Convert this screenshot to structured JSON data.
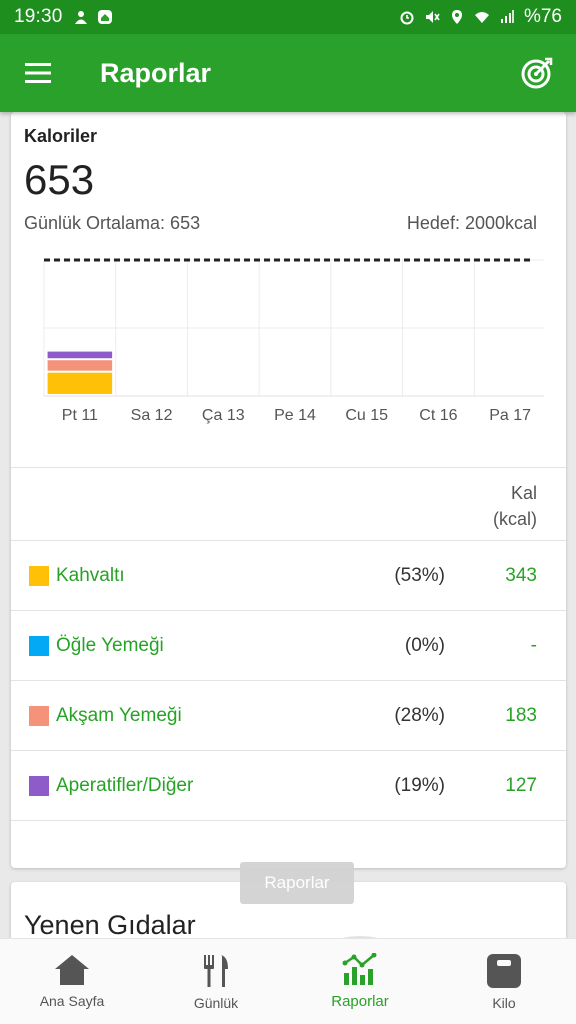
{
  "status_bar": {
    "time": "19:30",
    "battery": "%76"
  },
  "app_bar": {
    "title": "Raporlar"
  },
  "calories": {
    "label": "Kaloriler",
    "value": "653",
    "average_label": "Günlük Ortalama: 653",
    "goal_label": "Hedef: 2000kcal"
  },
  "chart_data": {
    "type": "bar",
    "stacked": true,
    "categories": [
      "Pt 11",
      "Sa 12",
      "Ça 13",
      "Pe 14",
      "Cu 15",
      "Ct 16",
      "Pa 17"
    ],
    "series": [
      {
        "name": "Kahvaltı",
        "color": "#FFC107",
        "values": [
          343,
          0,
          0,
          0,
          0,
          0,
          0
        ]
      },
      {
        "name": "Öğle Yemeği",
        "color": "#03A9F4",
        "values": [
          0,
          0,
          0,
          0,
          0,
          0,
          0
        ]
      },
      {
        "name": "Akşam Yemeği",
        "color": "#F4937A",
        "values": [
          183,
          0,
          0,
          0,
          0,
          0,
          0
        ]
      },
      {
        "name": "Aperatifler/Diğer",
        "color": "#8E5CC8",
        "values": [
          127,
          0,
          0,
          0,
          0,
          0,
          0
        ]
      }
    ],
    "goal_line": 2000,
    "ylim": [
      0,
      2000
    ],
    "grid": true
  },
  "table": {
    "header_line1": "Kal",
    "header_line2": "(kcal)",
    "rows": [
      {
        "name": "Kahvaltı",
        "percent": "(53%)",
        "value": "343",
        "color": "#FFC107"
      },
      {
        "name": "Öğle Yemeği",
        "percent": "(0%)",
        "value": "-",
        "color": "#03A9F4"
      },
      {
        "name": "Akşam Yemeği",
        "percent": "(28%)",
        "value": "183",
        "color": "#F4937A"
      },
      {
        "name": "Aperatifler/Diğer",
        "percent": "(19%)",
        "value": "127",
        "color": "#8E5CC8"
      }
    ]
  },
  "eaten_foods": {
    "heading": "Yenen Gıdalar"
  },
  "toast": {
    "text": "Raporlar"
  },
  "bottom_nav": {
    "items": [
      {
        "label": "Ana Sayfa",
        "icon": "home-icon"
      },
      {
        "label": "Günlük",
        "icon": "fork-knife-icon"
      },
      {
        "label": "Raporlar",
        "icon": "chart-icon"
      },
      {
        "label": "Kilo",
        "icon": "scale-icon"
      }
    ],
    "active": "Raporlar"
  },
  "colors": {
    "primary": "#2AA12A",
    "status_bar": "#1E8F1E",
    "accent_text": "#26A326"
  }
}
